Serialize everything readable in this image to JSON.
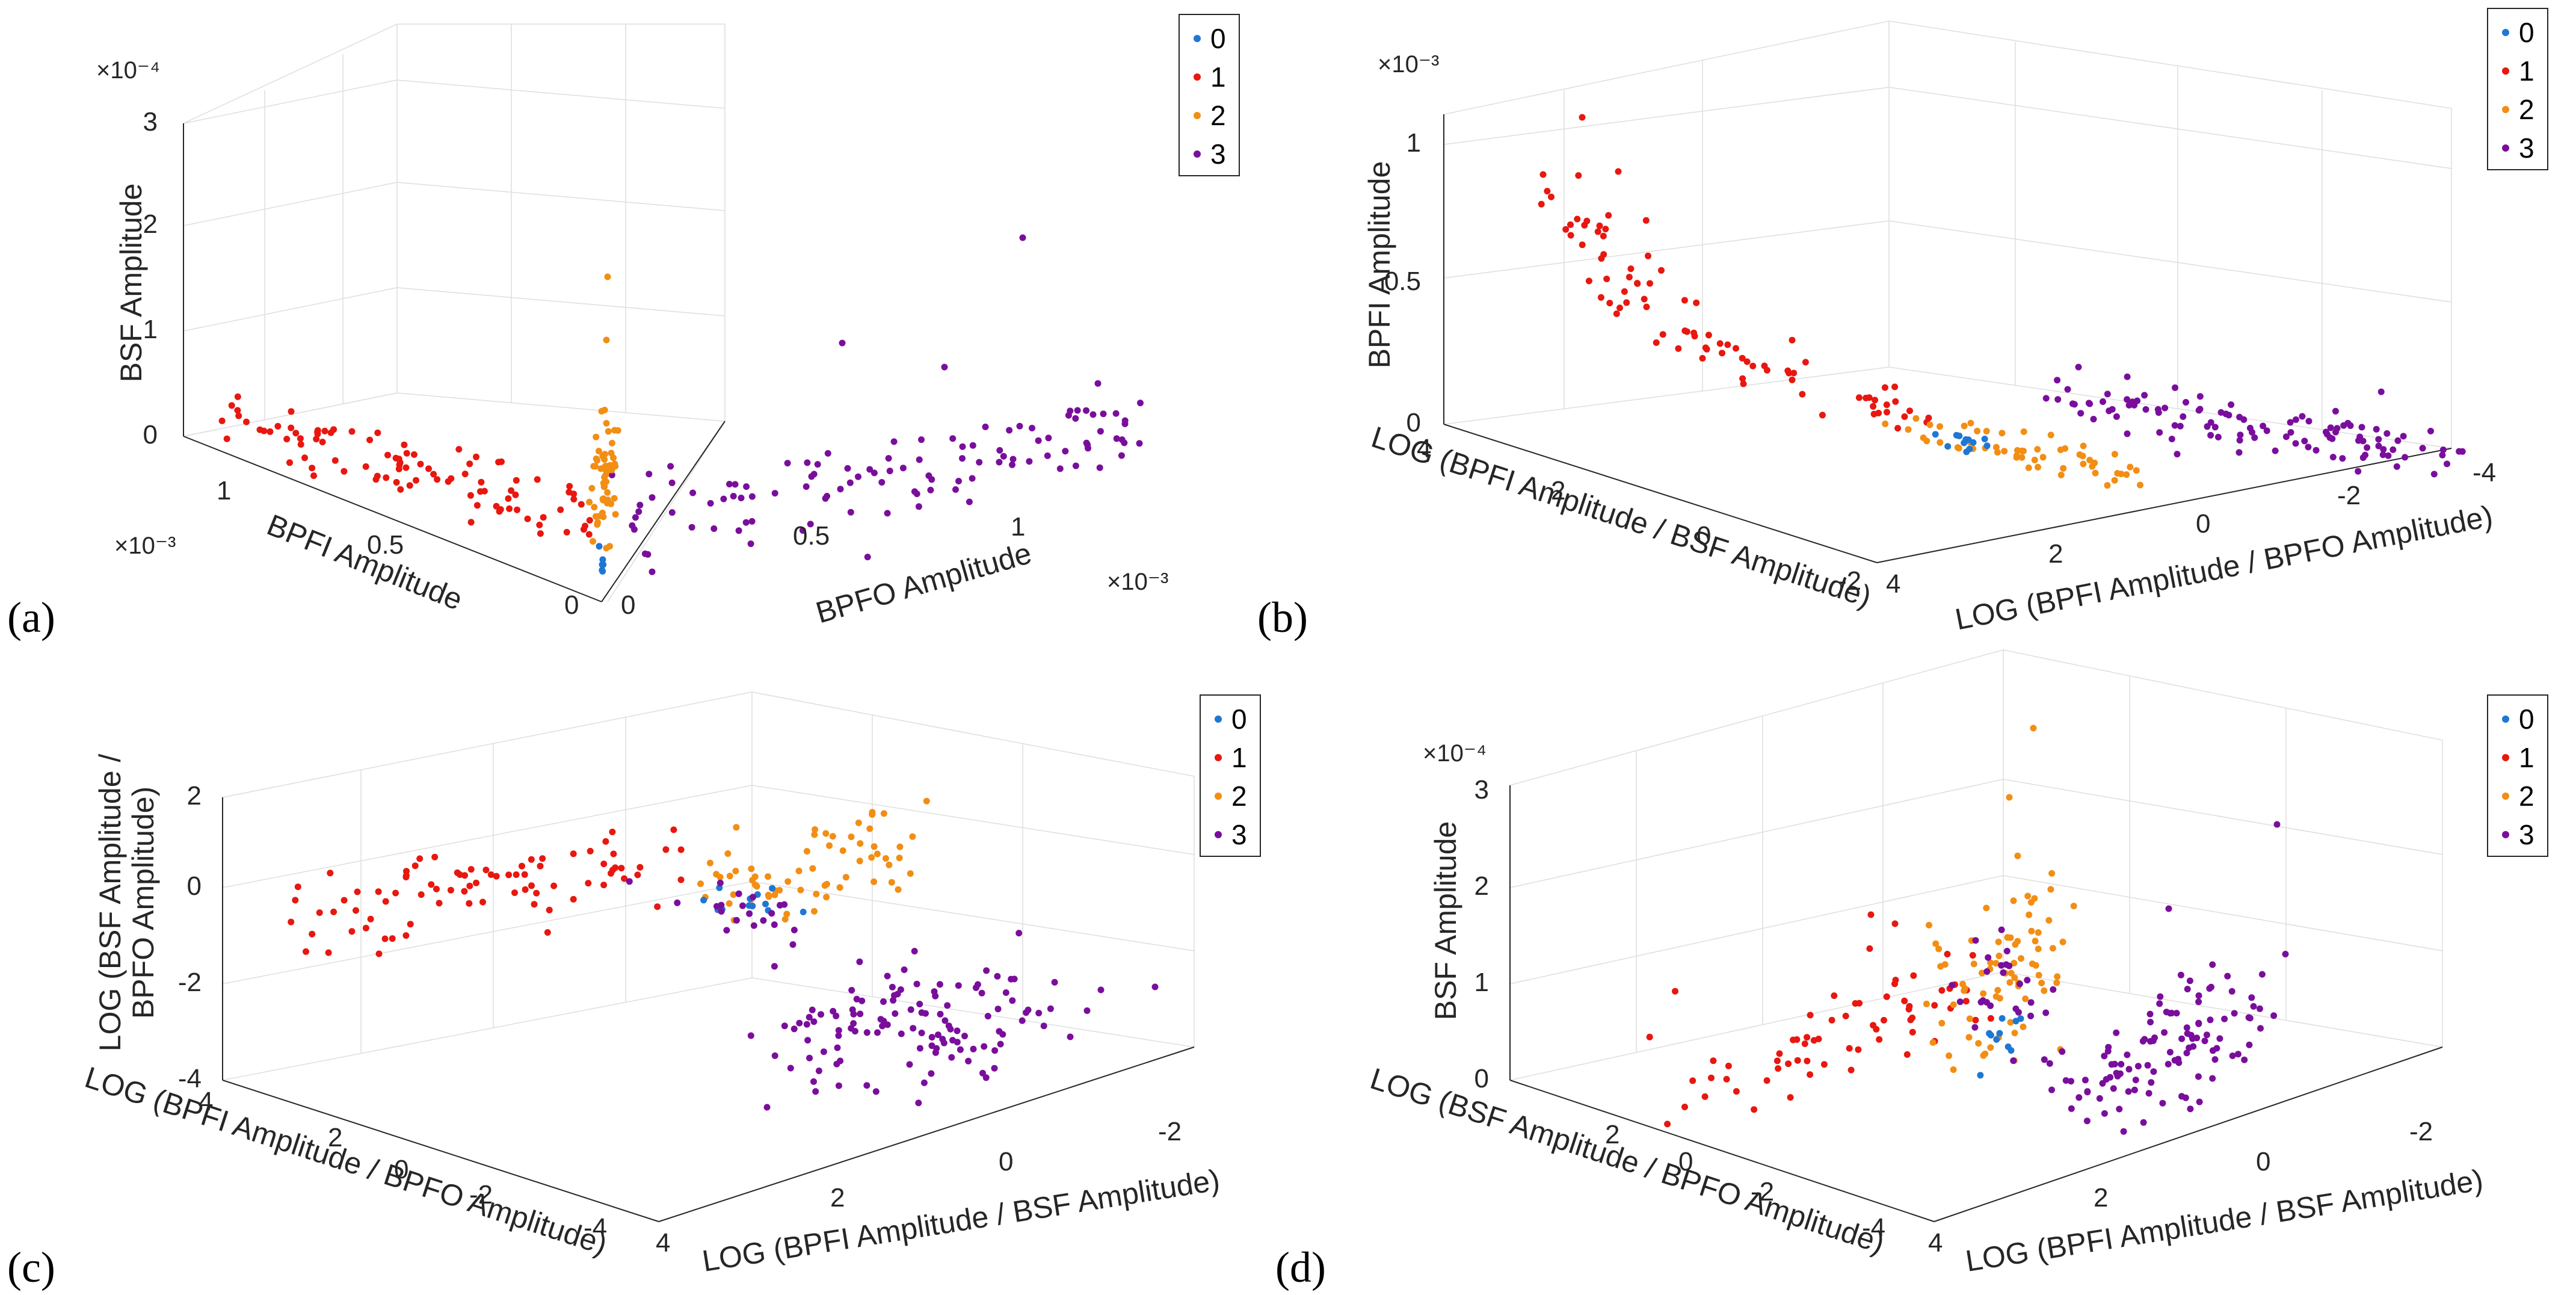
{
  "chart_data": [
    {
      "panel": "(a)",
      "type": "scatter",
      "x_axis": {
        "label": "BPFO Amplitude",
        "exponent": "×10⁻³",
        "ticks": [
          "0",
          "0.5",
          "1"
        ]
      },
      "y_axis": {
        "label": "BPFI Amplitude",
        "exponent": "×10⁻³",
        "ticks": [
          "0",
          "0.5",
          "1"
        ]
      },
      "z_axis": {
        "label": "BSF Amplitude",
        "exponent": "×10⁻⁴",
        "ticks": [
          "0",
          "1",
          "2",
          "3"
        ]
      },
      "legend": [
        "0",
        "1",
        "2",
        "3"
      ]
    },
    {
      "panel": "(b)",
      "type": "scatter",
      "x_axis": {
        "label": "LOG (BPFI Amplitude / BPFO Amplitude)",
        "ticks": [
          "4",
          "2",
          "0",
          "-2",
          "-4"
        ]
      },
      "y_axis": {
        "label": "LOG (BPFI Amplitude / BSF Amplitude)",
        "ticks": [
          "4",
          "2",
          "0",
          "-2"
        ]
      },
      "z_axis": {
        "label": "BPFI Amplitude",
        "exponent": "×10⁻³",
        "ticks": [
          "0",
          "0.5",
          "1"
        ]
      },
      "legend": [
        "0",
        "1",
        "2",
        "3"
      ]
    },
    {
      "panel": "(c)",
      "type": "scatter",
      "x_axis": {
        "label": "LOG (BPFI Amplitude / BSF Amplitude)",
        "ticks": [
          "4",
          "2",
          "0",
          "-2"
        ]
      },
      "y_axis": {
        "label": "LOG (BPFI Amplitude / BPFO Amplitude)",
        "ticks": [
          "4",
          "2",
          "0",
          "-2",
          "-4"
        ]
      },
      "z_axis": {
        "label_line1": "LOG (BSF Amplitude /",
        "label_line2": "BPFO Amplitude)",
        "ticks": [
          "-4",
          "-2",
          "0",
          "2"
        ]
      },
      "legend": [
        "0",
        "1",
        "2",
        "3"
      ]
    },
    {
      "panel": "(d)",
      "type": "scatter",
      "x_axis": {
        "label": "LOG (BPFI Amplitude / BSF Amplitude)",
        "ticks": [
          "4",
          "2",
          "0",
          "-2"
        ]
      },
      "y_axis": {
        "label": "LOG (BSF Amplitude / BPFO Amplitude)",
        "ticks": [
          "4",
          "2",
          "0",
          "-2",
          "-4"
        ]
      },
      "z_axis": {
        "label": "BSF Amplitude",
        "exponent": "×10⁻⁴",
        "ticks": [
          "0",
          "1",
          "2",
          "3"
        ]
      },
      "legend": [
        "0",
        "1",
        "2",
        "3"
      ]
    }
  ],
  "class_colors": {
    "0": "#1f77d4",
    "1": "#e8170f",
    "2": "#f28e14",
    "3": "#7a0e9c"
  }
}
